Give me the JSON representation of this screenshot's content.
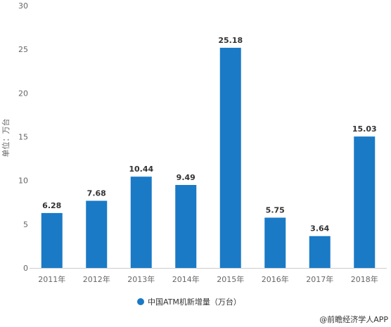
{
  "chart_data": {
    "type": "bar",
    "categories": [
      "2011年",
      "2012年",
      "2013年",
      "2014年",
      "2015年",
      "2016年",
      "2017年",
      "2018年"
    ],
    "series": [
      {
        "name": "中国ATM机新增量（万台）",
        "values": [
          6.28,
          7.68,
          10.44,
          9.49,
          25.18,
          5.75,
          3.64,
          15.03
        ]
      }
    ],
    "data_labels": [
      "6.28",
      "7.68",
      "10.44",
      "9.49",
      "25.18",
      "5.75",
      "3.64",
      "15.03"
    ],
    "y_ticks": [
      "0",
      "5",
      "10",
      "15",
      "20",
      "25",
      "30"
    ],
    "ylim": [
      0,
      30
    ],
    "ylabel": "单位：万台",
    "xlabel": "",
    "title": "",
    "grid": false,
    "legend_position": "bottom",
    "bar_color": "#1a7ac6",
    "legend_marker_color": "#1a7ac6"
  },
  "footer": {
    "source": "@前瞻经济学人APP"
  }
}
